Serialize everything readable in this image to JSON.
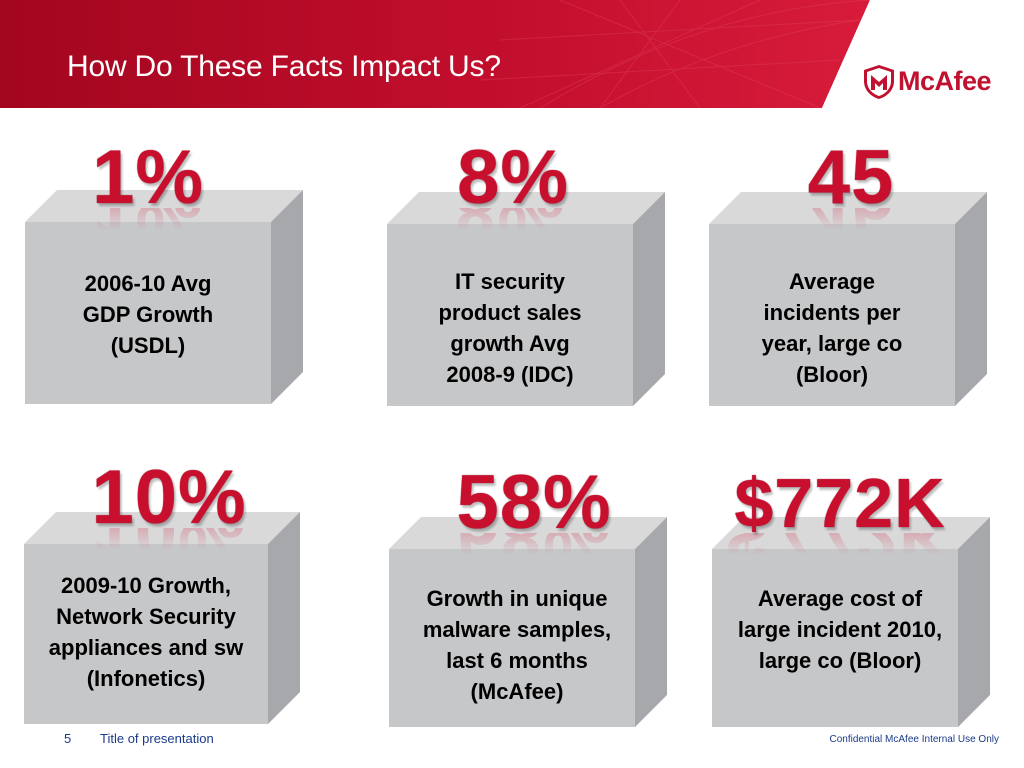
{
  "slide": {
    "title": "How Do These Facts Impact Us?",
    "brand": "McAfee",
    "brand_color": "#c01230",
    "accent_color": "#c8102e",
    "logo_icon": "mcafee-shield-icon"
  },
  "cards": [
    {
      "stat": "1%",
      "text": [
        "2006-10 Avg",
        "GDP Growth",
        "(USDL)"
      ]
    },
    {
      "stat": "8%",
      "text": [
        "IT security",
        "product sales",
        "growth Avg",
        "2008-9 (IDC)"
      ]
    },
    {
      "stat": "45",
      "text": [
        "Average",
        "incidents per",
        "year, large co",
        "(Bloor)"
      ]
    },
    {
      "stat": "10%",
      "text": [
        "2009-10 Growth,",
        "Network Security",
        "appliances and sw",
        "(Infonetics)"
      ]
    },
    {
      "stat": "58%",
      "text": [
        "Growth in unique",
        "malware samples,",
        "last 6 months",
        "(McAfee)"
      ]
    },
    {
      "stat": "$772K",
      "text": [
        "Average cost of",
        "large incident 2010,",
        "large co (Bloor)"
      ]
    }
  ],
  "footer": {
    "page_number": "5",
    "presentation_title": "Title of presentation",
    "confidential": "Confidential McAfee Internal Use Only"
  }
}
